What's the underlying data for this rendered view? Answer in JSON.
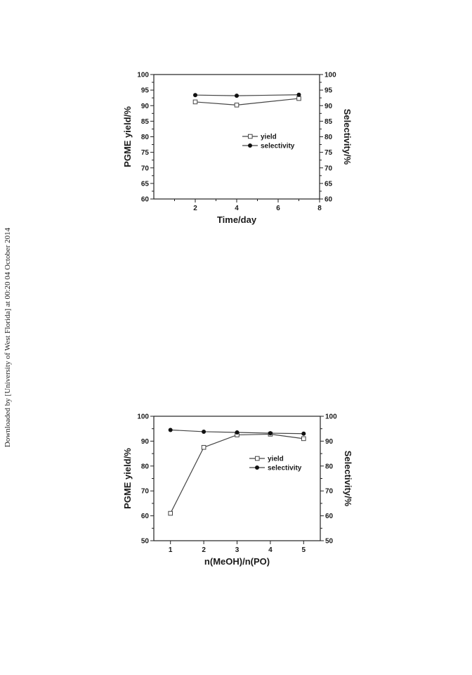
{
  "watermark": "Downloaded by [University of West Florida] at 00:20 04 October 2014",
  "chart_data": [
    {
      "type": "line",
      "xlabel": "Time/day",
      "ylabel": "PGME yield/%",
      "ylabel_right": "Selectivity/%",
      "xlim": [
        0,
        8
      ],
      "ylim": [
        60,
        100
      ],
      "xticks": [
        2,
        4,
        6,
        8
      ],
      "yticks": [
        60,
        65,
        70,
        75,
        80,
        85,
        90,
        95,
        100
      ],
      "x": [
        2,
        4,
        7
      ],
      "series": [
        {
          "name": "yield",
          "marker": "open-square",
          "values": [
            91.2,
            90.2,
            92.3
          ]
        },
        {
          "name": "selectivity",
          "marker": "filled-circle",
          "values": [
            93.4,
            93.2,
            93.5
          ]
        }
      ],
      "legend": "center-right"
    },
    {
      "type": "line",
      "xlabel": "n(MeOH)/n(PO)",
      "ylabel": "PGME yield/%",
      "ylabel_right": "Selectivity/%",
      "xlim": [
        0.5,
        5.5
      ],
      "ylim": [
        50,
        100
      ],
      "xticks": [
        1,
        2,
        3,
        4,
        5
      ],
      "yticks": [
        50,
        60,
        70,
        80,
        90,
        100
      ],
      "x": [
        1,
        2,
        3,
        4,
        5
      ],
      "series": [
        {
          "name": "yield",
          "marker": "open-square",
          "values": [
            61,
            87.5,
            92.5,
            92.8,
            91
          ]
        },
        {
          "name": "selectivity",
          "marker": "filled-circle",
          "values": [
            94.5,
            93.8,
            93.5,
            93.2,
            93
          ]
        }
      ],
      "legend": "center-right"
    }
  ]
}
